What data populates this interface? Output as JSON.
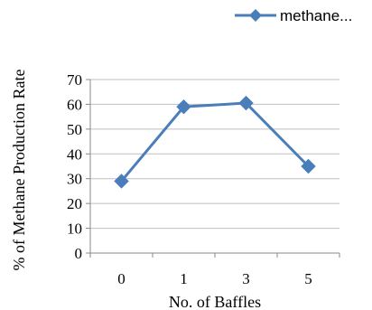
{
  "chart_data": {
    "type": "line",
    "title": "",
    "xlabel": "No. of Baffles",
    "ylabel": "% of Methane Production Rate",
    "categories": [
      "0",
      "1",
      "3",
      "5"
    ],
    "series": [
      {
        "name": "methane...",
        "values": [
          29,
          59,
          60.5,
          35
        ]
      }
    ],
    "ylim": [
      0,
      70
    ],
    "yticks": [
      0,
      10,
      20,
      30,
      40,
      50,
      60,
      70
    ],
    "grid": true,
    "legend_position": "top-right",
    "colors": {
      "series": "#4a7ebb",
      "grid": "#bfbfbf",
      "axis": "#888888"
    }
  }
}
